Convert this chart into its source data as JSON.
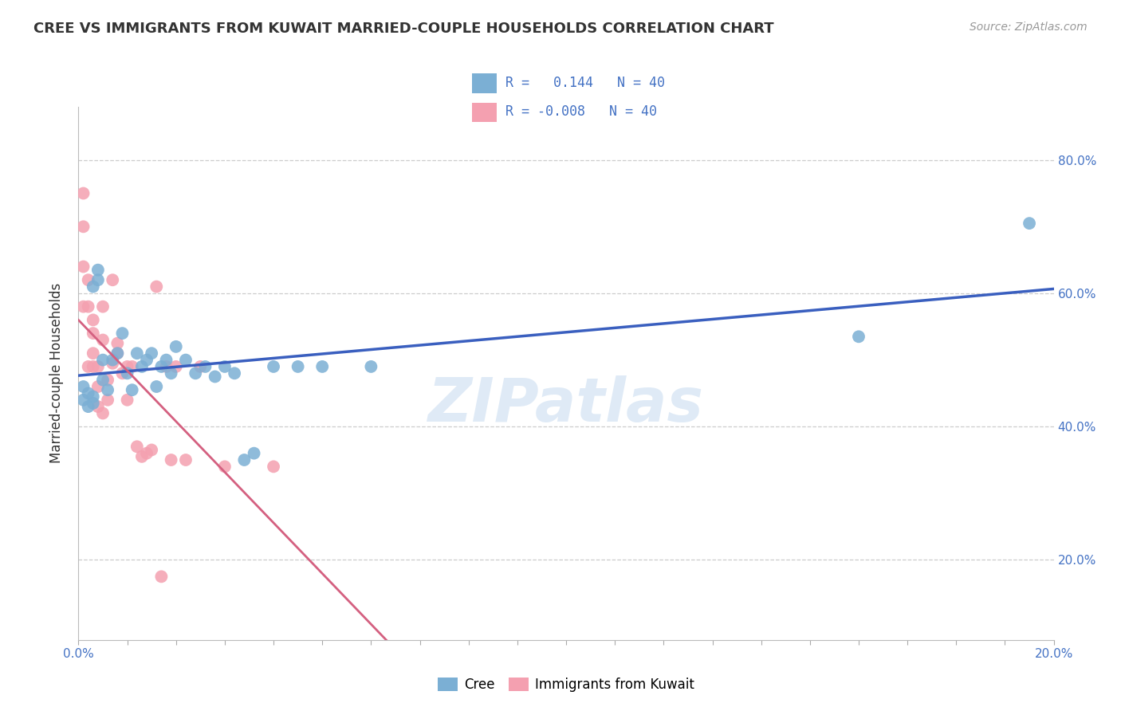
{
  "title": "CREE VS IMMIGRANTS FROM KUWAIT MARRIED-COUPLE HOUSEHOLDS CORRELATION CHART",
  "source": "Source: ZipAtlas.com",
  "ylabel": "Married-couple Households",
  "xlim": [
    0.0,
    0.2
  ],
  "ylim": [
    0.08,
    0.88
  ],
  "ylabel_ticks": [
    "20.0%",
    "40.0%",
    "60.0%",
    "80.0%"
  ],
  "ylabel_vals": [
    0.2,
    0.4,
    0.6,
    0.8
  ],
  "blue_R": 0.144,
  "blue_N": 40,
  "pink_R": -0.008,
  "pink_N": 40,
  "blue_color": "#7BAFD4",
  "pink_color": "#F4A0B0",
  "blue_line_color": "#3A5FBF",
  "pink_line_color": "#D46080",
  "blue_scatter_x": [
    0.001,
    0.001,
    0.002,
    0.002,
    0.003,
    0.003,
    0.003,
    0.004,
    0.004,
    0.005,
    0.005,
    0.006,
    0.007,
    0.008,
    0.009,
    0.01,
    0.011,
    0.012,
    0.013,
    0.014,
    0.015,
    0.016,
    0.017,
    0.018,
    0.019,
    0.02,
    0.022,
    0.024,
    0.026,
    0.028,
    0.03,
    0.032,
    0.034,
    0.036,
    0.04,
    0.045,
    0.05,
    0.06,
    0.16,
    0.195
  ],
  "blue_scatter_y": [
    0.44,
    0.46,
    0.43,
    0.45,
    0.435,
    0.445,
    0.61,
    0.62,
    0.635,
    0.5,
    0.47,
    0.455,
    0.5,
    0.51,
    0.54,
    0.48,
    0.455,
    0.51,
    0.49,
    0.5,
    0.51,
    0.46,
    0.49,
    0.5,
    0.48,
    0.52,
    0.5,
    0.48,
    0.49,
    0.475,
    0.49,
    0.48,
    0.35,
    0.36,
    0.49,
    0.49,
    0.49,
    0.49,
    0.535,
    0.705
  ],
  "pink_scatter_x": [
    0.001,
    0.001,
    0.001,
    0.001,
    0.002,
    0.002,
    0.002,
    0.003,
    0.003,
    0.003,
    0.003,
    0.004,
    0.004,
    0.004,
    0.005,
    0.005,
    0.005,
    0.006,
    0.006,
    0.007,
    0.007,
    0.008,
    0.008,
    0.009,
    0.01,
    0.01,
    0.011,
    0.012,
    0.013,
    0.014,
    0.015,
    0.016,
    0.017,
    0.018,
    0.019,
    0.02,
    0.022,
    0.025,
    0.03,
    0.04
  ],
  "pink_scatter_y": [
    0.7,
    0.64,
    0.58,
    0.75,
    0.62,
    0.58,
    0.49,
    0.56,
    0.54,
    0.51,
    0.49,
    0.46,
    0.43,
    0.49,
    0.58,
    0.53,
    0.42,
    0.47,
    0.44,
    0.62,
    0.495,
    0.525,
    0.51,
    0.48,
    0.49,
    0.44,
    0.49,
    0.37,
    0.355,
    0.36,
    0.365,
    0.61,
    0.175,
    0.49,
    0.35,
    0.49,
    0.35,
    0.49,
    0.34,
    0.34
  ],
  "grid_color": "#CCCCCC",
  "background_color": "#FFFFFF"
}
